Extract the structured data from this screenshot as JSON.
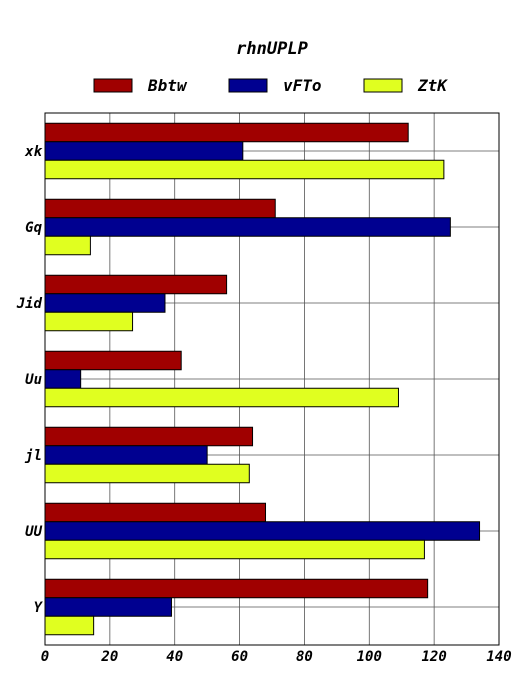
{
  "chart_data": {
    "type": "bar",
    "orientation": "horizontal",
    "title": "rhnUPLP",
    "xlabel": "",
    "ylabel": "",
    "categories": [
      "xk",
      "Gq",
      "Jid",
      "Uu",
      "jl",
      "UU",
      "Y"
    ],
    "series": [
      {
        "name": "Bbtw",
        "color": "#a00000",
        "values": [
          112,
          71,
          56,
          42,
          64,
          68,
          118
        ]
      },
      {
        "name": "vFTo",
        "color": "#000090",
        "values": [
          61,
          125,
          37,
          11,
          50,
          134,
          39
        ]
      },
      {
        "name": "ZtK",
        "color": "#e0ff20",
        "values": [
          123,
          14,
          27,
          109,
          63,
          117,
          15
        ]
      }
    ],
    "xlim": [
      0,
      140
    ],
    "xticks": [
      0,
      20,
      40,
      60,
      80,
      100,
      120,
      140
    ],
    "grid": true,
    "legend_position": "top"
  }
}
